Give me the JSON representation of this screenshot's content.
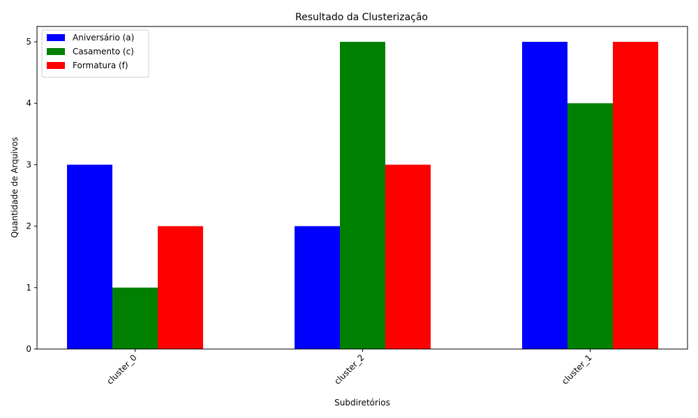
{
  "chart_data": {
    "type": "bar",
    "title": "Resultado da Clusterização",
    "xlabel": "Subdiretórios",
    "ylabel": "Quantidade de Arquivos",
    "categories": [
      "cluster_0",
      "cluster_2",
      "cluster_1"
    ],
    "series": [
      {
        "name": "Aniversário (a)",
        "color": "#0000ff",
        "values": [
          3,
          2,
          5
        ]
      },
      {
        "name": "Casamento (c)",
        "color": "#008000",
        "values": [
          1,
          5,
          4
        ]
      },
      {
        "name": "Formatura (f)",
        "color": "#ff0000",
        "values": [
          2,
          3,
          5
        ]
      }
    ],
    "ylim": [
      0,
      5.25
    ],
    "yticks": [
      0,
      1,
      2,
      3,
      4,
      5
    ],
    "grid": false,
    "legend_position": "upper-left"
  }
}
